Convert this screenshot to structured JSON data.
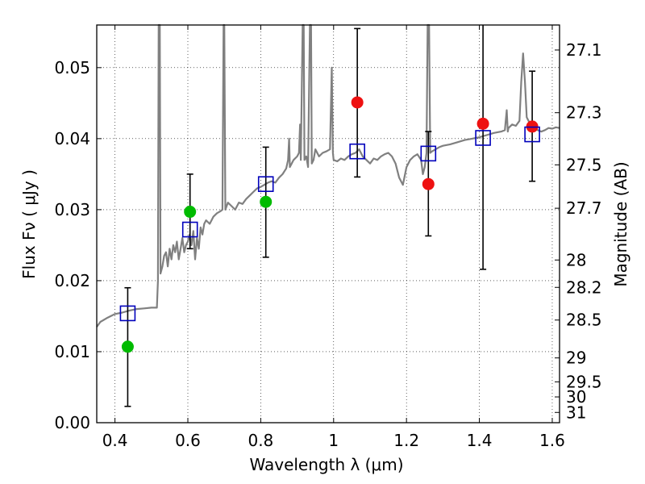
{
  "chart_data": {
    "type": "scatter",
    "xlabel": "Wavelength  λ (μm)",
    "ylabel": "Flux  Fν  ( μJy )",
    "ylabel2": "Magnitude (AB)",
    "xlim": [
      0.35,
      1.62
    ],
    "ylim": [
      0.0,
      0.056
    ],
    "grid": true,
    "x_ticks": [
      0.4,
      0.6,
      0.8,
      1.0,
      1.2,
      1.4,
      1.6
    ],
    "x_tick_labels": [
      "0.4",
      "0.6",
      "0.8",
      "1",
      "1.2",
      "1.4",
      "1.6"
    ],
    "y_ticks": [
      0.0,
      0.01,
      0.02,
      0.03,
      0.04,
      0.05
    ],
    "y_tick_labels": [
      "0.00",
      "0.01",
      "0.02",
      "0.03",
      "0.04",
      "0.05"
    ],
    "mag_ticks": [
      "27.1",
      "27.3",
      "27.5",
      "27.7",
      "28",
      "28.2",
      "28.5",
      "29",
      "29.5",
      "30",
      "31"
    ],
    "colors": {
      "model": "#808080",
      "observed_green": "#00bb00",
      "observed_red": "#ee1111",
      "model_bands": "#0000bb",
      "errorbar": "#000000"
    },
    "series": [
      {
        "marker": "circle",
        "points": [
          {
            "x": 0.435,
            "y": 0.0107,
            "err_low": 0.0023,
            "err_high": 0.019,
            "color": "green"
          },
          {
            "x": 0.606,
            "y": 0.0297,
            "err_low": 0.0245,
            "err_high": 0.035,
            "color": "green"
          },
          {
            "x": 0.814,
            "y": 0.0311,
            "err_low": 0.0233,
            "err_high": 0.0388,
            "color": "green"
          },
          {
            "x": 1.065,
            "y": 0.0451,
            "err_low": 0.0346,
            "err_high": 0.0555,
            "color": "red"
          },
          {
            "x": 1.26,
            "y": 0.0336,
            "err_low": 0.0263,
            "err_high": 0.041,
            "color": "red"
          },
          {
            "x": 1.41,
            "y": 0.0421,
            "err_low": 0.0216,
            "err_high": 0.056,
            "color": "red"
          },
          {
            "x": 1.545,
            "y": 0.0417,
            "err_low": 0.034,
            "err_high": 0.0495,
            "color": "red"
          }
        ]
      },
      {
        "marker": "open-square",
        "points": [
          {
            "x": 0.435,
            "y": 0.0154
          },
          {
            "x": 0.606,
            "y": 0.0272
          },
          {
            "x": 0.814,
            "y": 0.0336
          },
          {
            "x": 1.065,
            "y": 0.0382
          },
          {
            "x": 1.26,
            "y": 0.0379
          },
          {
            "x": 1.41,
            "y": 0.0401
          },
          {
            "x": 1.545,
            "y": 0.0406
          }
        ]
      },
      {
        "marker": "line",
        "points": [
          [
            0.35,
            0.0135
          ],
          [
            0.36,
            0.0142
          ],
          [
            0.38,
            0.0148
          ],
          [
            0.4,
            0.0153
          ],
          [
            0.42,
            0.0155
          ],
          [
            0.44,
            0.0158
          ],
          [
            0.46,
            0.016
          ],
          [
            0.48,
            0.0161
          ],
          [
            0.5,
            0.0162
          ],
          [
            0.515,
            0.0162
          ],
          [
            0.518,
            0.02
          ],
          [
            0.52,
            0.056
          ],
          [
            0.523,
            0.056
          ],
          [
            0.525,
            0.021
          ],
          [
            0.53,
            0.022
          ],
          [
            0.535,
            0.0235
          ],
          [
            0.54,
            0.024
          ],
          [
            0.545,
            0.022
          ],
          [
            0.55,
            0.0245
          ],
          [
            0.555,
            0.023
          ],
          [
            0.56,
            0.025
          ],
          [
            0.565,
            0.024
          ],
          [
            0.57,
            0.0255
          ],
          [
            0.575,
            0.023
          ],
          [
            0.58,
            0.0245
          ],
          [
            0.585,
            0.026
          ],
          [
            0.59,
            0.024
          ],
          [
            0.595,
            0.025
          ],
          [
            0.6,
            0.0255
          ],
          [
            0.605,
            0.0265
          ],
          [
            0.61,
            0.025
          ],
          [
            0.615,
            0.027
          ],
          [
            0.62,
            0.023
          ],
          [
            0.625,
            0.026
          ],
          [
            0.63,
            0.0245
          ],
          [
            0.635,
            0.0275
          ],
          [
            0.64,
            0.0265
          ],
          [
            0.645,
            0.028
          ],
          [
            0.65,
            0.0285
          ],
          [
            0.66,
            0.028
          ],
          [
            0.67,
            0.029
          ],
          [
            0.68,
            0.0295
          ],
          [
            0.69,
            0.0298
          ],
          [
            0.695,
            0.03
          ],
          [
            0.698,
            0.056
          ],
          [
            0.7,
            0.056
          ],
          [
            0.703,
            0.03
          ],
          [
            0.71,
            0.031
          ],
          [
            0.72,
            0.0305
          ],
          [
            0.73,
            0.03
          ],
          [
            0.74,
            0.031
          ],
          [
            0.75,
            0.0308
          ],
          [
            0.76,
            0.0315
          ],
          [
            0.77,
            0.032
          ],
          [
            0.78,
            0.0325
          ],
          [
            0.79,
            0.033
          ],
          [
            0.8,
            0.0332
          ],
          [
            0.81,
            0.0335
          ],
          [
            0.82,
            0.0338
          ],
          [
            0.83,
            0.034
          ],
          [
            0.84,
            0.0338
          ],
          [
            0.85,
            0.0345
          ],
          [
            0.86,
            0.035
          ],
          [
            0.87,
            0.0358
          ],
          [
            0.875,
            0.037
          ],
          [
            0.878,
            0.04
          ],
          [
            0.88,
            0.036
          ],
          [
            0.885,
            0.0365
          ],
          [
            0.89,
            0.037
          ],
          [
            0.9,
            0.0375
          ],
          [
            0.905,
            0.038
          ],
          [
            0.908,
            0.042
          ],
          [
            0.91,
            0.037
          ],
          [
            0.915,
            0.056
          ],
          [
            0.918,
            0.056
          ],
          [
            0.92,
            0.037
          ],
          [
            0.925,
            0.0375
          ],
          [
            0.93,
            0.036
          ],
          [
            0.935,
            0.056
          ],
          [
            0.938,
            0.056
          ],
          [
            0.94,
            0.0365
          ],
          [
            0.945,
            0.037
          ],
          [
            0.95,
            0.0385
          ],
          [
            0.96,
            0.0375
          ],
          [
            0.97,
            0.038
          ],
          [
            0.98,
            0.0382
          ],
          [
            0.99,
            0.0385
          ],
          [
            0.995,
            0.05
          ],
          [
            0.998,
            0.038
          ],
          [
            1.0,
            0.037
          ],
          [
            1.01,
            0.0368
          ],
          [
            1.02,
            0.0372
          ],
          [
            1.03,
            0.037
          ],
          [
            1.04,
            0.0375
          ],
          [
            1.05,
            0.0378
          ],
          [
            1.06,
            0.038
          ],
          [
            1.07,
            0.0385
          ],
          [
            1.08,
            0.0375
          ],
          [
            1.09,
            0.037
          ],
          [
            1.1,
            0.0365
          ],
          [
            1.11,
            0.0372
          ],
          [
            1.12,
            0.037
          ],
          [
            1.13,
            0.0375
          ],
          [
            1.14,
            0.0378
          ],
          [
            1.15,
            0.038
          ],
          [
            1.16,
            0.0375
          ],
          [
            1.17,
            0.0365
          ],
          [
            1.18,
            0.0345
          ],
          [
            1.19,
            0.0335
          ],
          [
            1.2,
            0.036
          ],
          [
            1.21,
            0.037
          ],
          [
            1.22,
            0.0375
          ],
          [
            1.23,
            0.0378
          ],
          [
            1.24,
            0.037
          ],
          [
            1.245,
            0.035
          ],
          [
            1.25,
            0.036
          ],
          [
            1.255,
            0.038
          ],
          [
            1.258,
            0.056
          ],
          [
            1.262,
            0.056
          ],
          [
            1.265,
            0.038
          ],
          [
            1.27,
            0.0382
          ],
          [
            1.28,
            0.0385
          ],
          [
            1.29,
            0.0388
          ],
          [
            1.3,
            0.039
          ],
          [
            1.32,
            0.0392
          ],
          [
            1.34,
            0.0395
          ],
          [
            1.36,
            0.0398
          ],
          [
            1.38,
            0.04
          ],
          [
            1.4,
            0.0402
          ],
          [
            1.42,
            0.0405
          ],
          [
            1.44,
            0.0408
          ],
          [
            1.46,
            0.041
          ],
          [
            1.47,
            0.0412
          ],
          [
            1.475,
            0.044
          ],
          [
            1.478,
            0.041
          ],
          [
            1.48,
            0.0415
          ],
          [
            1.49,
            0.042
          ],
          [
            1.5,
            0.0418
          ],
          [
            1.51,
            0.0425
          ],
          [
            1.515,
            0.048
          ],
          [
            1.52,
            0.052
          ],
          [
            1.525,
            0.048
          ],
          [
            1.53,
            0.043
          ],
          [
            1.54,
            0.042
          ],
          [
            1.55,
            0.0415
          ],
          [
            1.56,
            0.0412
          ],
          [
            1.57,
            0.041
          ],
          [
            1.58,
            0.0412
          ],
          [
            1.59,
            0.0415
          ],
          [
            1.6,
            0.0414
          ],
          [
            1.61,
            0.0416
          ],
          [
            1.62,
            0.0415
          ]
        ]
      }
    ]
  }
}
